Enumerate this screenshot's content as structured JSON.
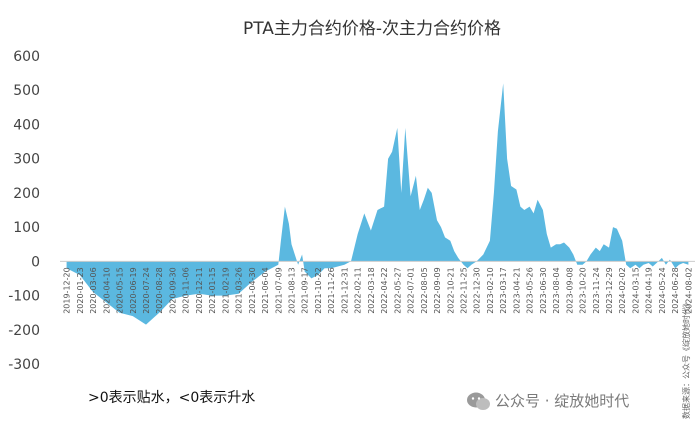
{
  "chart_data": {
    "type": "area",
    "title": "PTA主力合约价格-次主力合约价格",
    "xlabel": "",
    "ylabel": "",
    "ylim": [
      -300,
      600
    ],
    "yticks": [
      600,
      500,
      400,
      300,
      200,
      100,
      0,
      -100,
      -200,
      -300
    ],
    "grid": false,
    "legend": "none",
    "fill_color": "#5bb8e0",
    "x": [
      "2019-12-20",
      "2020-01-23",
      "2020-03-06",
      "2020-04-10",
      "2020-05-15",
      "2020-06-19",
      "2020-07-24",
      "2020-08-28",
      "2020-09-30",
      "2020-11-06",
      "2020-12-11",
      "2021-01-15",
      "2021-02-19",
      "2021-03-26",
      "2021-04-30",
      "2021-06-04",
      "2021-07-09",
      "2021-08-13",
      "2021-09-17",
      "2021-10-22",
      "2021-11-26",
      "2021-12-31",
      "2022-02-11",
      "2022-03-18",
      "2022-04-22",
      "2022-05-27",
      "2022-07-01",
      "2022-08-05",
      "2022-09-09",
      "2022-10-21",
      "2022-11-25",
      "2022-12-30",
      "2023-02-10",
      "2023-03-17",
      "2023-04-21",
      "2023-05-26",
      "2023-06-30",
      "2023-08-04",
      "2023-09-08",
      "2023-10-20",
      "2023-11-24",
      "2023-12-29",
      "2024-02-02",
      "2024-03-15",
      "2024-04-19",
      "2024-05-24",
      "2024-06-28",
      "2024-08-02"
    ],
    "points": [
      [
        0,
        -20
      ],
      [
        1,
        -40
      ],
      [
        2,
        -90
      ],
      [
        3,
        -120
      ],
      [
        4,
        -150
      ],
      [
        5,
        -160
      ],
      [
        6,
        -185
      ],
      [
        7,
        -150
      ],
      [
        8,
        -110
      ],
      [
        9,
        -100
      ],
      [
        10,
        -95
      ],
      [
        11,
        -100
      ],
      [
        12,
        -100
      ],
      [
        13,
        -95
      ],
      [
        14,
        -60
      ],
      [
        15,
        -30
      ],
      [
        16,
        -10
      ],
      [
        16.2,
        60
      ],
      [
        16.5,
        160
      ],
      [
        16.8,
        110
      ],
      [
        17,
        50
      ],
      [
        17.5,
        -10
      ],
      [
        17.8,
        20
      ],
      [
        18,
        -30
      ],
      [
        18.5,
        -50
      ],
      [
        19,
        -40
      ],
      [
        19.5,
        -20
      ],
      [
        20,
        -20
      ],
      [
        21,
        -10
      ],
      [
        21.5,
        0
      ],
      [
        22,
        80
      ],
      [
        22.5,
        140
      ],
      [
        23,
        90
      ],
      [
        23.5,
        150
      ],
      [
        24,
        160
      ],
      [
        24.3,
        300
      ],
      [
        24.6,
        320
      ],
      [
        25,
        390
      ],
      [
        25.3,
        200
      ],
      [
        25.6,
        390
      ],
      [
        26,
        190
      ],
      [
        26.4,
        250
      ],
      [
        26.7,
        150
      ],
      [
        27,
        180
      ],
      [
        27.3,
        215
      ],
      [
        27.6,
        200
      ],
      [
        28,
        120
      ],
      [
        28.3,
        100
      ],
      [
        28.6,
        70
      ],
      [
        29,
        60
      ],
      [
        29.3,
        30
      ],
      [
        29.6,
        10
      ],
      [
        30,
        -10
      ],
      [
        30.3,
        -20
      ],
      [
        30.6,
        -10
      ],
      [
        31,
        0
      ],
      [
        31.5,
        20
      ],
      [
        32,
        60
      ],
      [
        32.3,
        200
      ],
      [
        32.6,
        380
      ],
      [
        33,
        520
      ],
      [
        33.3,
        300
      ],
      [
        33.6,
        220
      ],
      [
        34,
        210
      ],
      [
        34.3,
        160
      ],
      [
        34.6,
        150
      ],
      [
        35,
        160
      ],
      [
        35.3,
        140
      ],
      [
        35.6,
        180
      ],
      [
        36,
        150
      ],
      [
        36.3,
        80
      ],
      [
        36.6,
        40
      ],
      [
        37,
        50
      ],
      [
        37.3,
        50
      ],
      [
        37.6,
        55
      ],
      [
        38,
        40
      ],
      [
        38.3,
        20
      ],
      [
        38.6,
        -10
      ],
      [
        39,
        -10
      ],
      [
        39.3,
        0
      ],
      [
        39.6,
        20
      ],
      [
        40,
        40
      ],
      [
        40.3,
        30
      ],
      [
        40.6,
        50
      ],
      [
        41,
        40
      ],
      [
        41.3,
        100
      ],
      [
        41.6,
        95
      ],
      [
        42,
        60
      ],
      [
        42.3,
        -10
      ],
      [
        42.6,
        -20
      ],
      [
        43,
        -10
      ],
      [
        43.3,
        -20
      ],
      [
        43.6,
        -10
      ],
      [
        44,
        -5
      ],
      [
        44.3,
        -15
      ],
      [
        44.6,
        -5
      ],
      [
        45,
        10
      ],
      [
        45.3,
        -10
      ],
      [
        45.6,
        5
      ],
      [
        46,
        -20
      ],
      [
        46.3,
        -10
      ],
      [
        46.6,
        -5
      ],
      [
        47,
        -10
      ]
    ]
  },
  "note": ">0表示贴水，<0表示升水",
  "source": "数据来源：公众号《绽放她时代》",
  "watermark": {
    "text": "公众号 · 绽放她时代",
    "icon": "wechat-icon"
  }
}
